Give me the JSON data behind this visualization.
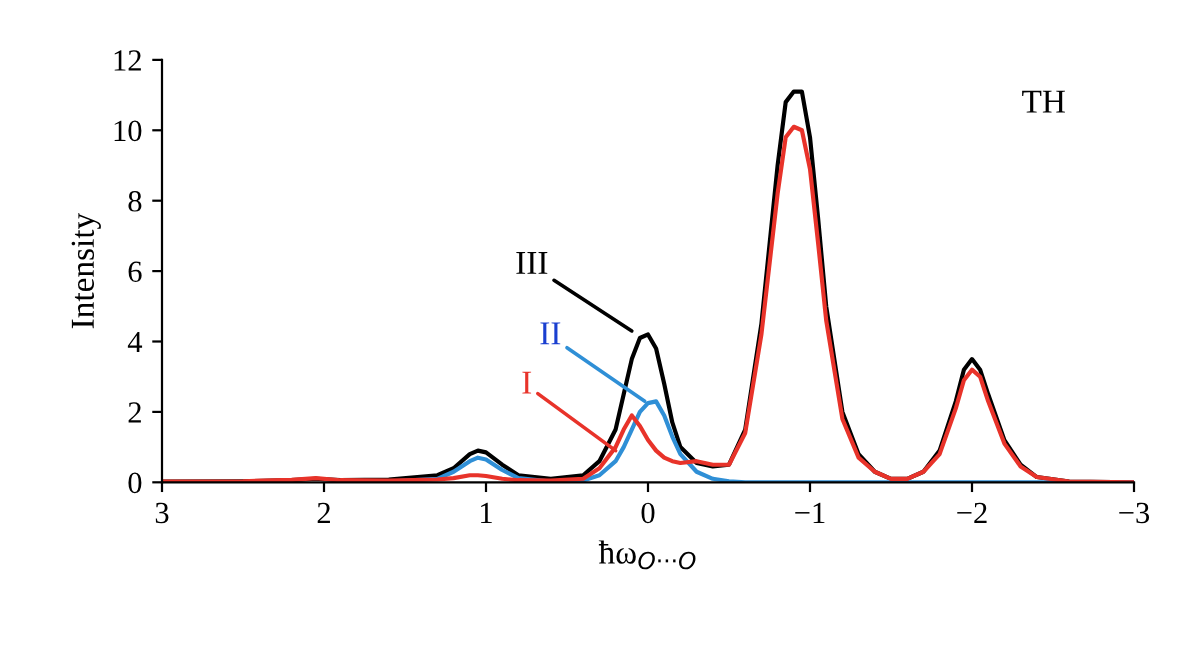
{
  "chart_data": {
    "type": "line",
    "xlabel": "ħω$_{O···O}$",
    "ylabel": "Intensity",
    "x": [
      3,
      2.5,
      2.2,
      2.05,
      1.9,
      1.6,
      1.3,
      1.2,
      1.1,
      1.05,
      1.0,
      0.9,
      0.8,
      0.6,
      0.4,
      0.3,
      0.2,
      0.15,
      0.1,
      0.05,
      0,
      -0.05,
      -0.1,
      -0.15,
      -0.2,
      -0.3,
      -0.4,
      -0.5,
      -0.6,
      -0.7,
      -0.8,
      -0.85,
      -0.9,
      -0.95,
      -1.0,
      -1.05,
      -1.1,
      -1.2,
      -1.3,
      -1.4,
      -1.5,
      -1.6,
      -1.7,
      -1.8,
      -1.9,
      -1.95,
      -2.0,
      -2.05,
      -2.1,
      -2.2,
      -2.3,
      -2.4,
      -2.6,
      -3
    ],
    "series": [
      {
        "color": "#000000",
        "values": [
          0.02,
          0.03,
          0.06,
          0.1,
          0.06,
          0.08,
          0.2,
          0.4,
          0.8,
          0.9,
          0.85,
          0.5,
          0.2,
          0.1,
          0.2,
          0.6,
          1.5,
          2.5,
          3.5,
          4.1,
          4.2,
          3.8,
          2.8,
          1.7,
          1.0,
          0.55,
          0.45,
          0.5,
          1.5,
          4.5,
          9,
          10.8,
          11.1,
          11.1,
          9.8,
          7.5,
          5,
          2.0,
          0.8,
          0.3,
          0.1,
          0.1,
          0.3,
          0.9,
          2.3,
          3.2,
          3.5,
          3.2,
          2.5,
          1.2,
          0.5,
          0.15,
          0.02,
          0
        ]
      },
      {
        "color": "#2f8fd6",
        "values": [
          null,
          null,
          null,
          null,
          null,
          0.02,
          0.1,
          0.3,
          0.6,
          0.7,
          0.65,
          0.35,
          0.12,
          0.02,
          0.05,
          0.2,
          0.6,
          1.0,
          1.5,
          2.0,
          2.25,
          2.3,
          1.9,
          1.3,
          0.8,
          0.3,
          0.1,
          0.03,
          0,
          0,
          0,
          0,
          0,
          0,
          0,
          0,
          0,
          0,
          0,
          0,
          0,
          0,
          0,
          0,
          0,
          0,
          0,
          0,
          0,
          0,
          0,
          0,
          0,
          0
        ]
      },
      {
        "color": "#e8332a",
        "values": [
          0.02,
          0.03,
          0.07,
          0.12,
          0.06,
          0.05,
          0.08,
          0.12,
          0.2,
          0.2,
          0.18,
          0.1,
          0.06,
          0.05,
          0.1,
          0.4,
          1.0,
          1.5,
          1.9,
          1.6,
          1.2,
          0.9,
          0.7,
          0.6,
          0.55,
          0.6,
          0.5,
          0.5,
          1.4,
          4.2,
          8.2,
          9.8,
          10.1,
          10.0,
          8.9,
          6.8,
          4.6,
          1.8,
          0.7,
          0.3,
          0.1,
          0.1,
          0.3,
          0.8,
          2.1,
          2.9,
          3.2,
          3.0,
          2.3,
          1.1,
          0.45,
          0.15,
          0.02,
          0
        ]
      }
    ],
    "annotations": [
      {
        "text": "III",
        "x": 0.1,
        "y": 4.3
      },
      {
        "text": "II",
        "x": 0.02,
        "y": 2.3
      },
      {
        "text": "I",
        "x": 0.2,
        "y": 0.9
      },
      "TH"
    ],
    "xlim": [
      3,
      -3
    ],
    "ylim": [
      0,
      12
    ],
    "xticks": [
      3,
      2,
      1,
      0,
      {
        "value": -1,
        "label": "−1"
      },
      {
        "value": -2,
        "label": "−2"
      },
      {
        "value": -3,
        "label": "−3"
      }
    ],
    "yticks": [
      0,
      2,
      4,
      6,
      8,
      10,
      12
    ],
    "grid": false,
    "legend": false,
    "marker": "none",
    "line_style": "solid"
  }
}
